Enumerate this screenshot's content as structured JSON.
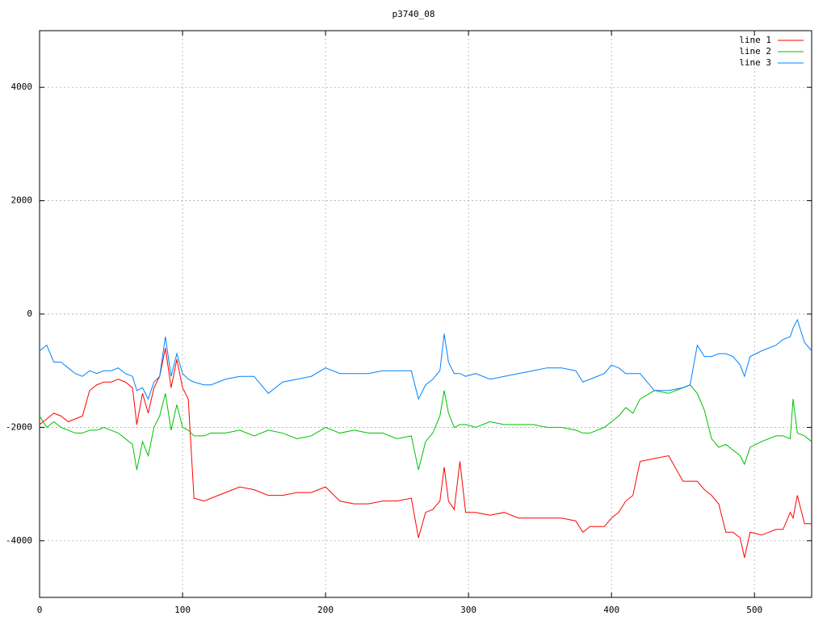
{
  "chart_data": {
    "type": "line",
    "title": "p3740_08",
    "x": [
      0,
      5,
      10,
      15,
      20,
      25,
      30,
      35,
      40,
      45,
      50,
      55,
      60,
      65,
      68,
      72,
      76,
      80,
      84,
      88,
      92,
      96,
      100,
      104,
      108,
      115,
      120,
      130,
      140,
      150,
      160,
      170,
      180,
      190,
      200,
      210,
      220,
      230,
      240,
      250,
      260,
      265,
      270,
      275,
      280,
      283,
      286,
      290,
      294,
      298,
      305,
      315,
      325,
      335,
      345,
      355,
      365,
      375,
      380,
      385,
      395,
      400,
      405,
      410,
      415,
      420,
      430,
      440,
      450,
      455,
      460,
      465,
      470,
      475,
      480,
      485,
      490,
      493,
      497,
      505,
      515,
      520,
      525,
      527,
      530,
      535,
      540
    ],
    "series": [
      {
        "name": "line 1",
        "color": "#ff0000",
        "values": [
          -1950,
          -1850,
          -1750,
          -1800,
          -1900,
          -1850,
          -1800,
          -1350,
          -1250,
          -1200,
          -1200,
          -1150,
          -1200,
          -1300,
          -1950,
          -1400,
          -1750,
          -1300,
          -1100,
          -600,
          -1300,
          -800,
          -1300,
          -1500,
          -3250,
          -3300,
          -3250,
          -3150,
          -3050,
          -3100,
          -3200,
          -3200,
          -3150,
          -3150,
          -3050,
          -3300,
          -3350,
          -3350,
          -3300,
          -3300,
          -3250,
          -3950,
          -3500,
          -3450,
          -3300,
          -2700,
          -3300,
          -3450,
          -2600,
          -3500,
          -3500,
          -3550,
          -3500,
          -3600,
          -3600,
          -3600,
          -3600,
          -3650,
          -3850,
          -3750,
          -3750,
          -3600,
          -3500,
          -3300,
          -3200,
          -2600,
          -2550,
          -2500,
          -2950,
          -2950,
          -2950,
          -3100,
          -3200,
          -3350,
          -3850,
          -3850,
          -3950,
          -4300,
          -3850,
          -3900,
          -3800,
          -3800,
          -3500,
          -3600,
          -3200,
          -3700,
          -3700
        ]
      },
      {
        "name": "line 2",
        "color": "#00c000",
        "values": [
          -1800,
          -2000,
          -1900,
          -2000,
          -2050,
          -2100,
          -2100,
          -2050,
          -2050,
          -2000,
          -2050,
          -2100,
          -2200,
          -2300,
          -2750,
          -2250,
          -2500,
          -2000,
          -1800,
          -1400,
          -2050,
          -1600,
          -2000,
          -2050,
          -2150,
          -2150,
          -2100,
          -2100,
          -2050,
          -2150,
          -2050,
          -2100,
          -2200,
          -2150,
          -2000,
          -2100,
          -2050,
          -2100,
          -2100,
          -2200,
          -2150,
          -2750,
          -2250,
          -2100,
          -1800,
          -1350,
          -1750,
          -2000,
          -1950,
          -1950,
          -2000,
          -1900,
          -1950,
          -1950,
          -1950,
          -2000,
          -2000,
          -2050,
          -2100,
          -2100,
          -2000,
          -1900,
          -1800,
          -1650,
          -1750,
          -1500,
          -1350,
          -1400,
          -1300,
          -1250,
          -1400,
          -1700,
          -2200,
          -2350,
          -2300,
          -2400,
          -2500,
          -2650,
          -2350,
          -2250,
          -2150,
          -2150,
          -2200,
          -1500,
          -2100,
          -2150,
          -2250
        ]
      },
      {
        "name": "line 3",
        "color": "#0080ff",
        "values": [
          -650,
          -550,
          -850,
          -850,
          -950,
          -1050,
          -1100,
          -1000,
          -1050,
          -1000,
          -1000,
          -950,
          -1050,
          -1100,
          -1350,
          -1300,
          -1500,
          -1200,
          -1100,
          -400,
          -1100,
          -700,
          -1050,
          -1150,
          -1200,
          -1250,
          -1250,
          -1150,
          -1100,
          -1100,
          -1400,
          -1200,
          -1150,
          -1100,
          -950,
          -1050,
          -1050,
          -1050,
          -1000,
          -1000,
          -1000,
          -1500,
          -1250,
          -1150,
          -1000,
          -350,
          -850,
          -1050,
          -1050,
          -1100,
          -1050,
          -1150,
          -1100,
          -1050,
          -1000,
          -950,
          -950,
          -1000,
          -1200,
          -1150,
          -1050,
          -900,
          -950,
          -1050,
          -1050,
          -1050,
          -1350,
          -1350,
          -1300,
          -1250,
          -550,
          -750,
          -750,
          -700,
          -700,
          -750,
          -900,
          -1100,
          -750,
          -650,
          -550,
          -450,
          -400,
          -250,
          -100,
          -500,
          -650
        ]
      }
    ],
    "xlim": [
      0,
      540
    ],
    "ylim": [
      -5000,
      5000
    ],
    "xticks": [
      0,
      100,
      200,
      300,
      400,
      500
    ],
    "yticks": [
      -4000,
      -2000,
      0,
      2000,
      4000
    ],
    "grid": true,
    "legend": "top-right"
  }
}
